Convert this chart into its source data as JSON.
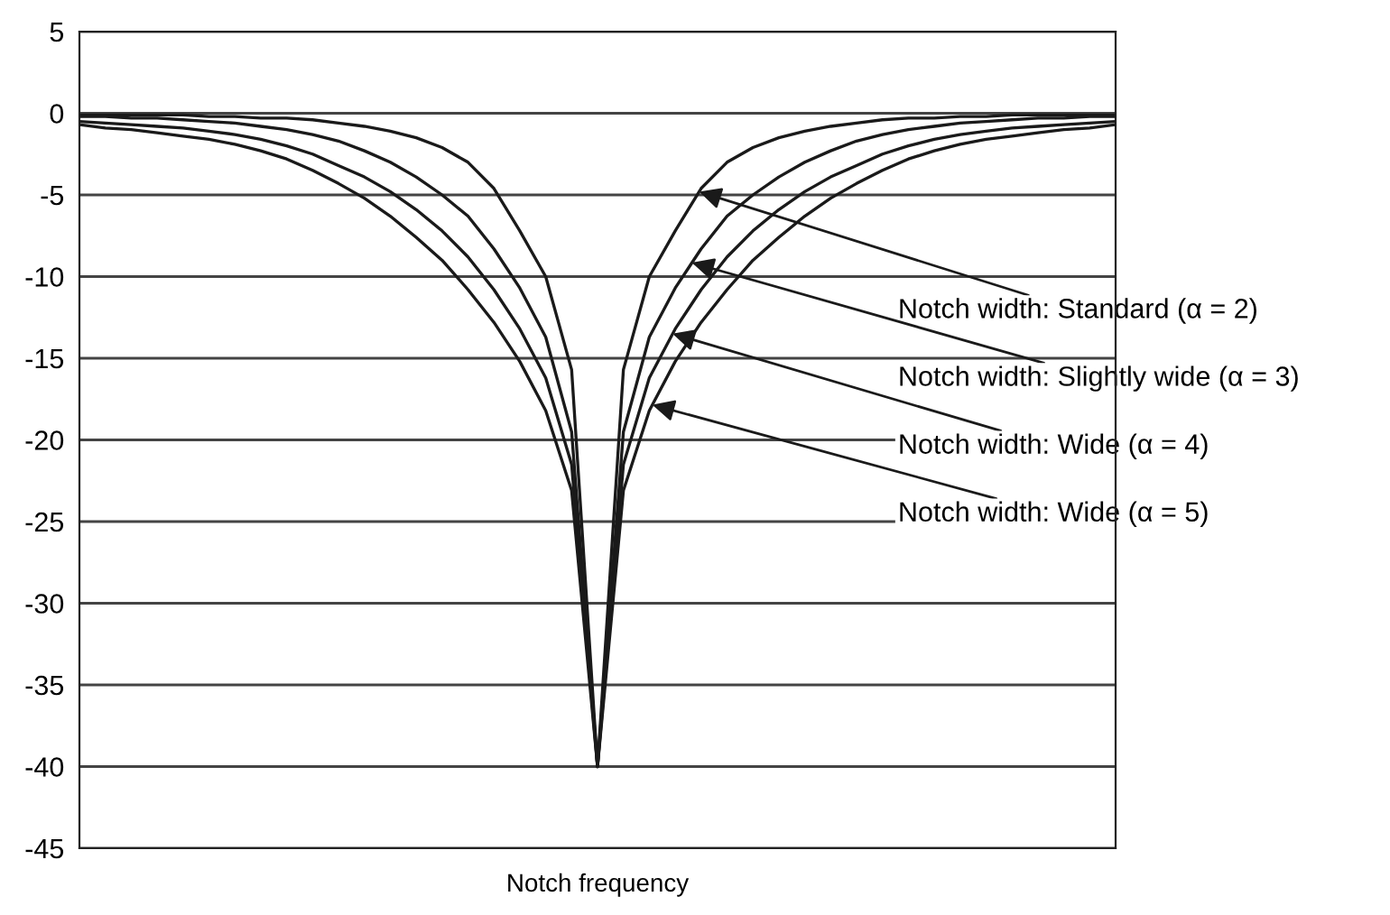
{
  "chart_data": {
    "type": "line",
    "xlabel": "Notch frequency",
    "categories": [
      null,
      null,
      null,
      null,
      null,
      null,
      null,
      null,
      null,
      null,
      null,
      null,
      null,
      null,
      null,
      null,
      null,
      null,
      null,
      null,
      null,
      null,
      null,
      null,
      null,
      null,
      null,
      null,
      null,
      null,
      null,
      null,
      null,
      null,
      null,
      null,
      null,
      null,
      null,
      null,
      null
    ],
    "series": [
      {
        "color": "#1a1a1a",
        "values": [
          -0.1,
          -0.1,
          -0.1,
          -0.1,
          -0.1,
          -0.2,
          -0.2,
          -0.3,
          -0.3,
          -0.4,
          -0.6,
          -0.8,
          -1.1,
          -1.5,
          -2.1,
          -3.0,
          -4.6,
          -7.2,
          -10.0,
          -15.7,
          -40,
          -15.7,
          -10.0,
          -7.2,
          -4.6,
          -3.0,
          -2.1,
          -1.5,
          -1.1,
          -0.8,
          -0.6,
          -0.4,
          -0.3,
          -0.3,
          -0.2,
          -0.2,
          -0.1,
          -0.1,
          -0.1,
          -0.1,
          -0.1
        ]
      },
      {
        "color": "#1a1a1a",
        "values": [
          -0.2,
          -0.2,
          -0.3,
          -0.3,
          -0.4,
          -0.5,
          -0.6,
          -0.8,
          -1.0,
          -1.3,
          -1.7,
          -2.3,
          -3.0,
          -3.9,
          -5.0,
          -6.3,
          -8.3,
          -10.7,
          -13.7,
          -19.5,
          -40,
          -19.5,
          -13.7,
          -10.7,
          -8.3,
          -6.3,
          -5.0,
          -3.9,
          -3.0,
          -2.3,
          -1.7,
          -1.3,
          -1.0,
          -0.8,
          -0.6,
          -0.5,
          -0.4,
          -0.3,
          -0.3,
          -0.2,
          -0.2
        ]
      },
      {
        "color": "#1a1a1a",
        "values": [
          -0.5,
          -0.6,
          -0.7,
          -0.8,
          -0.9,
          -1.1,
          -1.3,
          -1.6,
          -2.0,
          -2.5,
          -3.2,
          -3.9,
          -4.8,
          -5.9,
          -7.2,
          -8.8,
          -10.8,
          -13.2,
          -16.2,
          -21.5,
          -40,
          -21.5,
          -16.2,
          -13.2,
          -10.8,
          -8.8,
          -7.2,
          -5.9,
          -4.8,
          -3.9,
          -3.2,
          -2.5,
          -2.0,
          -1.6,
          -1.3,
          -1.1,
          -0.9,
          -0.8,
          -0.7,
          -0.6,
          -0.5
        ]
      },
      {
        "color": "#1a1a1a",
        "values": [
          -0.7,
          -0.9,
          -1.0,
          -1.2,
          -1.4,
          -1.6,
          -1.9,
          -2.3,
          -2.8,
          -3.5,
          -4.3,
          -5.2,
          -6.3,
          -7.6,
          -9.0,
          -10.8,
          -12.8,
          -15.2,
          -18.2,
          -23.1,
          -40,
          -23.1,
          -18.2,
          -15.2,
          -12.8,
          -10.8,
          -9.0,
          -7.6,
          -6.3,
          -5.2,
          -4.3,
          -3.5,
          -2.8,
          -2.3,
          -1.9,
          -1.6,
          -1.4,
          -1.2,
          -1.0,
          -0.9,
          -0.7
        ]
      }
    ],
    "annotations": [
      "Notch width: Standard (α = 2)",
      "Notch width: Slightly wide (α = 3)",
      "Notch width: Wide (α = 4)",
      "Notch width: Wide (α = 5)"
    ],
    "ylim": [
      -45,
      5
    ],
    "yticks": [
      -45,
      -40,
      -35,
      -30,
      -25,
      -20,
      -15,
      -10,
      -5,
      0,
      5
    ],
    "grid": "y",
    "tick_labels": "y",
    "marker": "none",
    "line_style": "solid"
  }
}
